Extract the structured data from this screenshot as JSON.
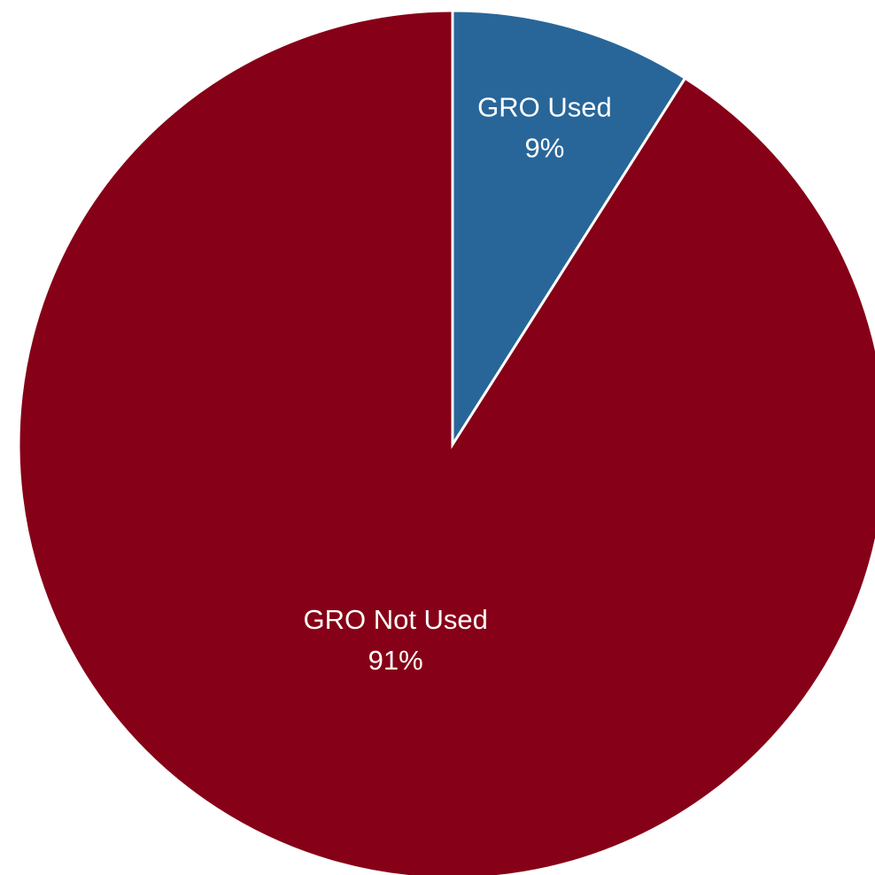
{
  "chart_data": {
    "type": "pie",
    "title": "",
    "start_angle_deg": 0,
    "direction": "clockwise",
    "legend": "none",
    "slices": [
      {
        "label": "GRO Used",
        "value": 9,
        "value_label": "9%",
        "color": "#286699"
      },
      {
        "label": "GRO Not Used",
        "value": 91,
        "value_label": "91%",
        "color": "#860017"
      }
    ]
  }
}
